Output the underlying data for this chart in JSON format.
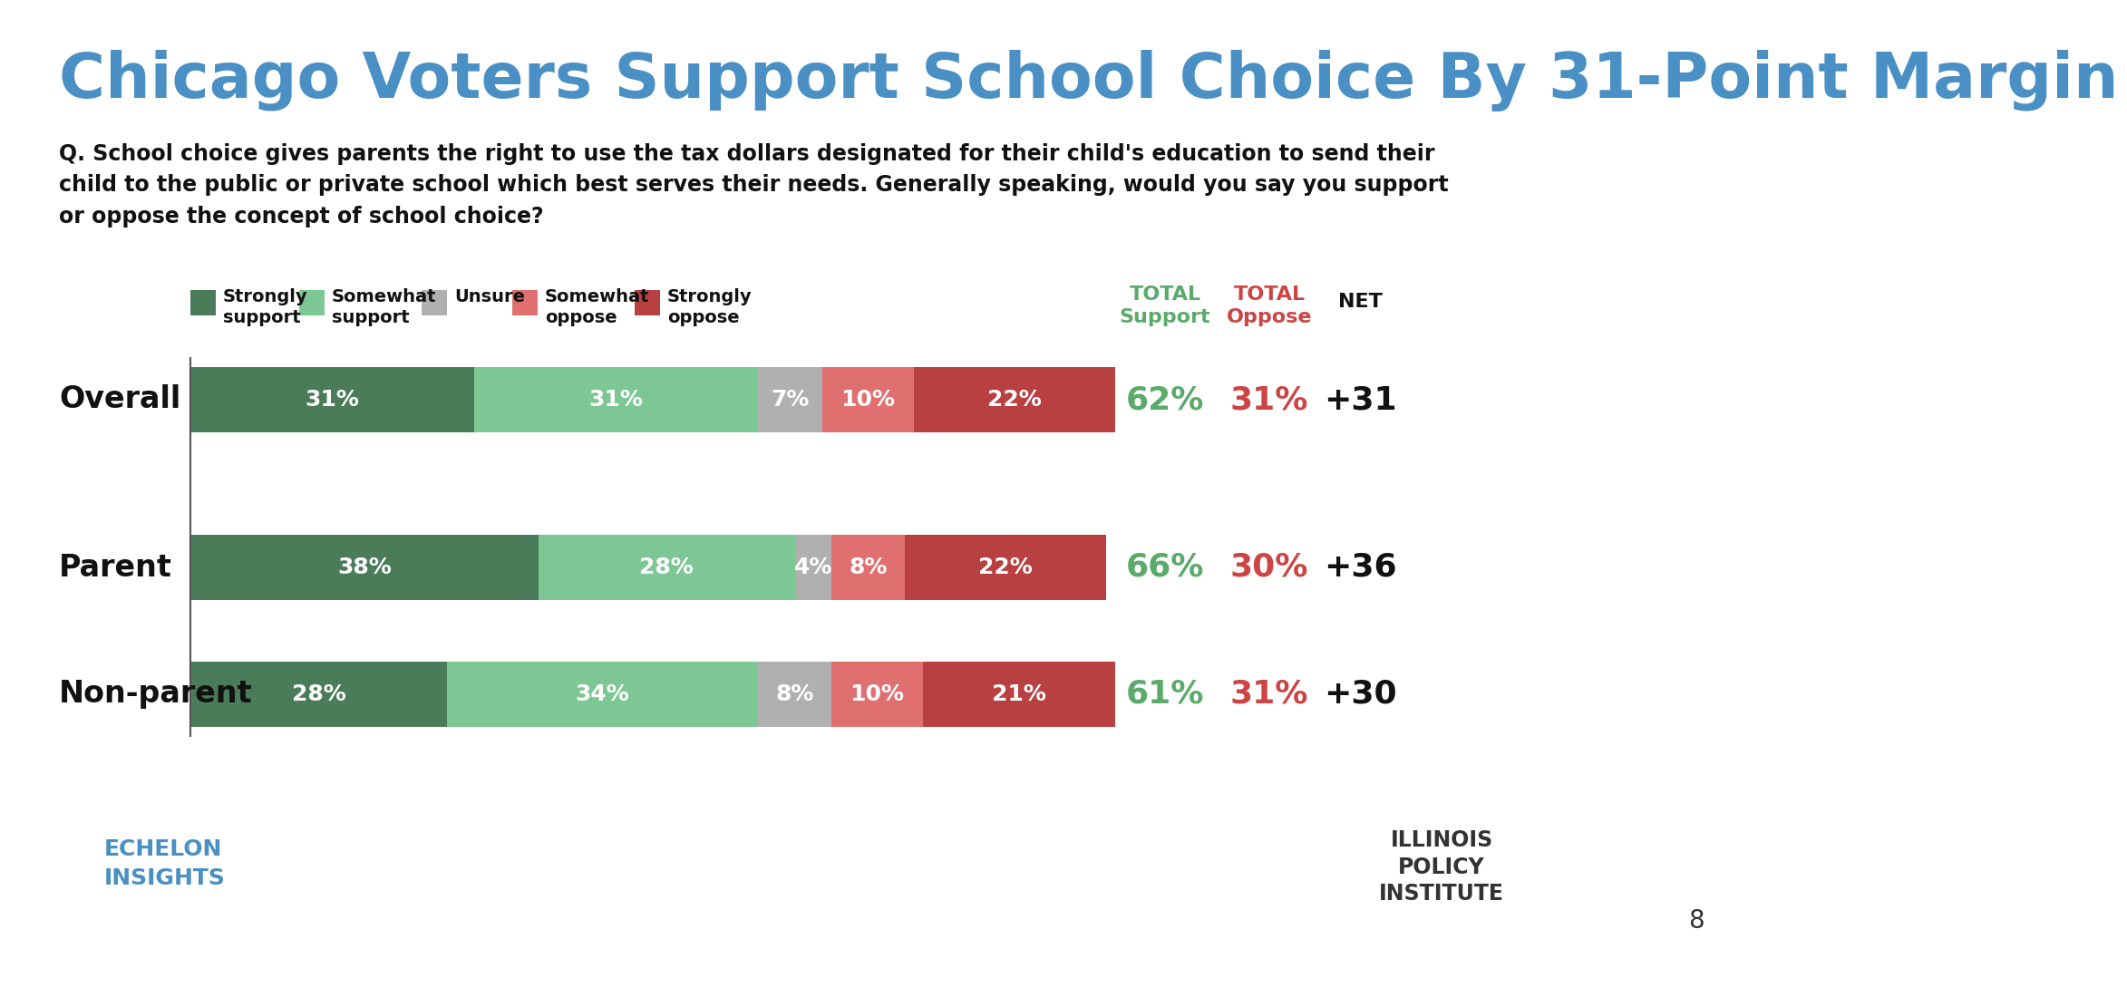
{
  "title": "Chicago Voters Support School Choice By 31-Point Margin",
  "title_color": "#4a90c4",
  "question_text": "Q. School choice gives parents the right to use the tax dollars designated for their child's education to send their\nchild to the public or private school which best serves their needs. Generally speaking, would you say you support\nor oppose the concept of school choice?",
  "categories": [
    "Overall",
    "Parent",
    "Non-parent"
  ],
  "segments": {
    "strongly_support": [
      31,
      38,
      28
    ],
    "somewhat_support": [
      31,
      28,
      34
    ],
    "unsure": [
      7,
      4,
      8
    ],
    "somewhat_oppose": [
      10,
      8,
      10
    ],
    "strongly_oppose": [
      22,
      22,
      21
    ]
  },
  "total_support": [
    62,
    66,
    61
  ],
  "total_oppose": [
    31,
    30,
    31
  ],
  "net": [
    "+31",
    "+36",
    "+30"
  ],
  "colors": {
    "strongly_support": "#4a7c59",
    "somewhat_support": "#7dc794",
    "unsure": "#b0b0b0",
    "somewhat_oppose": "#e07070",
    "strongly_oppose": "#b84040"
  },
  "legend_labels": [
    "Strongly\nsupport",
    "Somewhat\nsupport",
    "Unsure",
    "Somewhat\noppose",
    "Strongly\noppose"
  ],
  "support_color": "#5aaa6a",
  "oppose_color": "#cc4444",
  "net_color": "#222222",
  "background_color": "#ffffff"
}
